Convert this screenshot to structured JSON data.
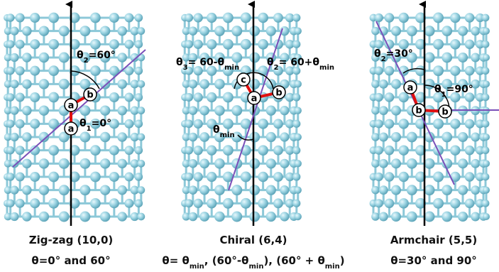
{
  "panels": [
    {
      "caption": "Zig-zag (10,0)",
      "subcaption": [
        "θ=0° and 60°"
      ],
      "angle_labels": [
        [
          "θ",
          "2",
          "=60°"
        ],
        [
          "θ",
          "1",
          "=0°"
        ]
      ],
      "atoms": [
        "a",
        "b",
        "a"
      ]
    },
    {
      "caption": "Chiral (6,4)",
      "subcaption": [
        "θ= θ",
        "min",
        ", (60°-θ",
        "min",
        "), (60° + θ",
        "min",
        ")"
      ],
      "angle_labels": [
        [
          "θ",
          "3",
          "= 60-θ",
          "min"
        ],
        [
          "θ",
          "2",
          "= 60+θ",
          "min"
        ],
        [
          "θ",
          "min"
        ]
      ],
      "atoms": [
        "c",
        "a",
        "b"
      ]
    },
    {
      "caption": "Armchair (5,5)",
      "subcaption": [
        "θ=30° and 90°"
      ],
      "angle_labels": [
        [
          "θ",
          "2",
          "=30°"
        ],
        [
          "θ",
          "1",
          "=90°"
        ]
      ],
      "atoms": [
        "a",
        "b",
        "b"
      ]
    }
  ]
}
